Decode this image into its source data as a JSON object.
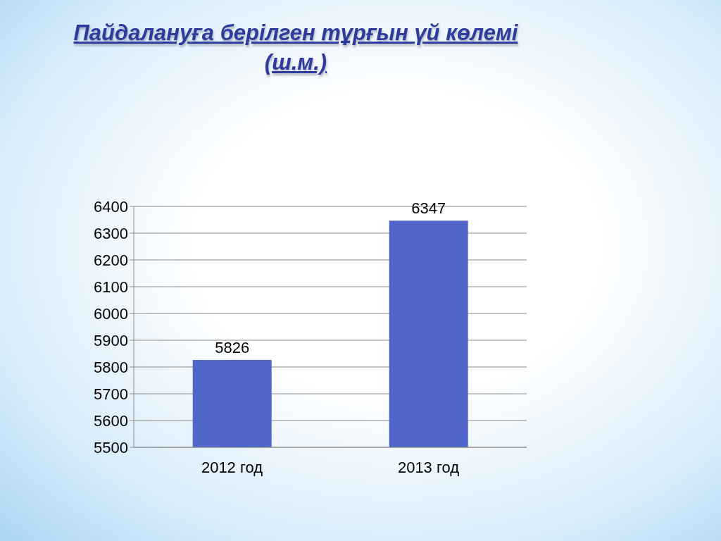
{
  "chart_data": {
    "type": "bar",
    "title": "Пайдалануға берілген тұрғын үй көлемі (ш.м.)",
    "categories": [
      "2012 год",
      "2013 год"
    ],
    "values": [
      5826,
      6347
    ],
    "color": "#4f66c8",
    "ylim": [
      5500,
      6400
    ],
    "yticks": [
      5500,
      5600,
      5700,
      5800,
      5900,
      6000,
      6100,
      6200,
      6300,
      6400
    ],
    "grid": "y",
    "data_labels": true
  }
}
